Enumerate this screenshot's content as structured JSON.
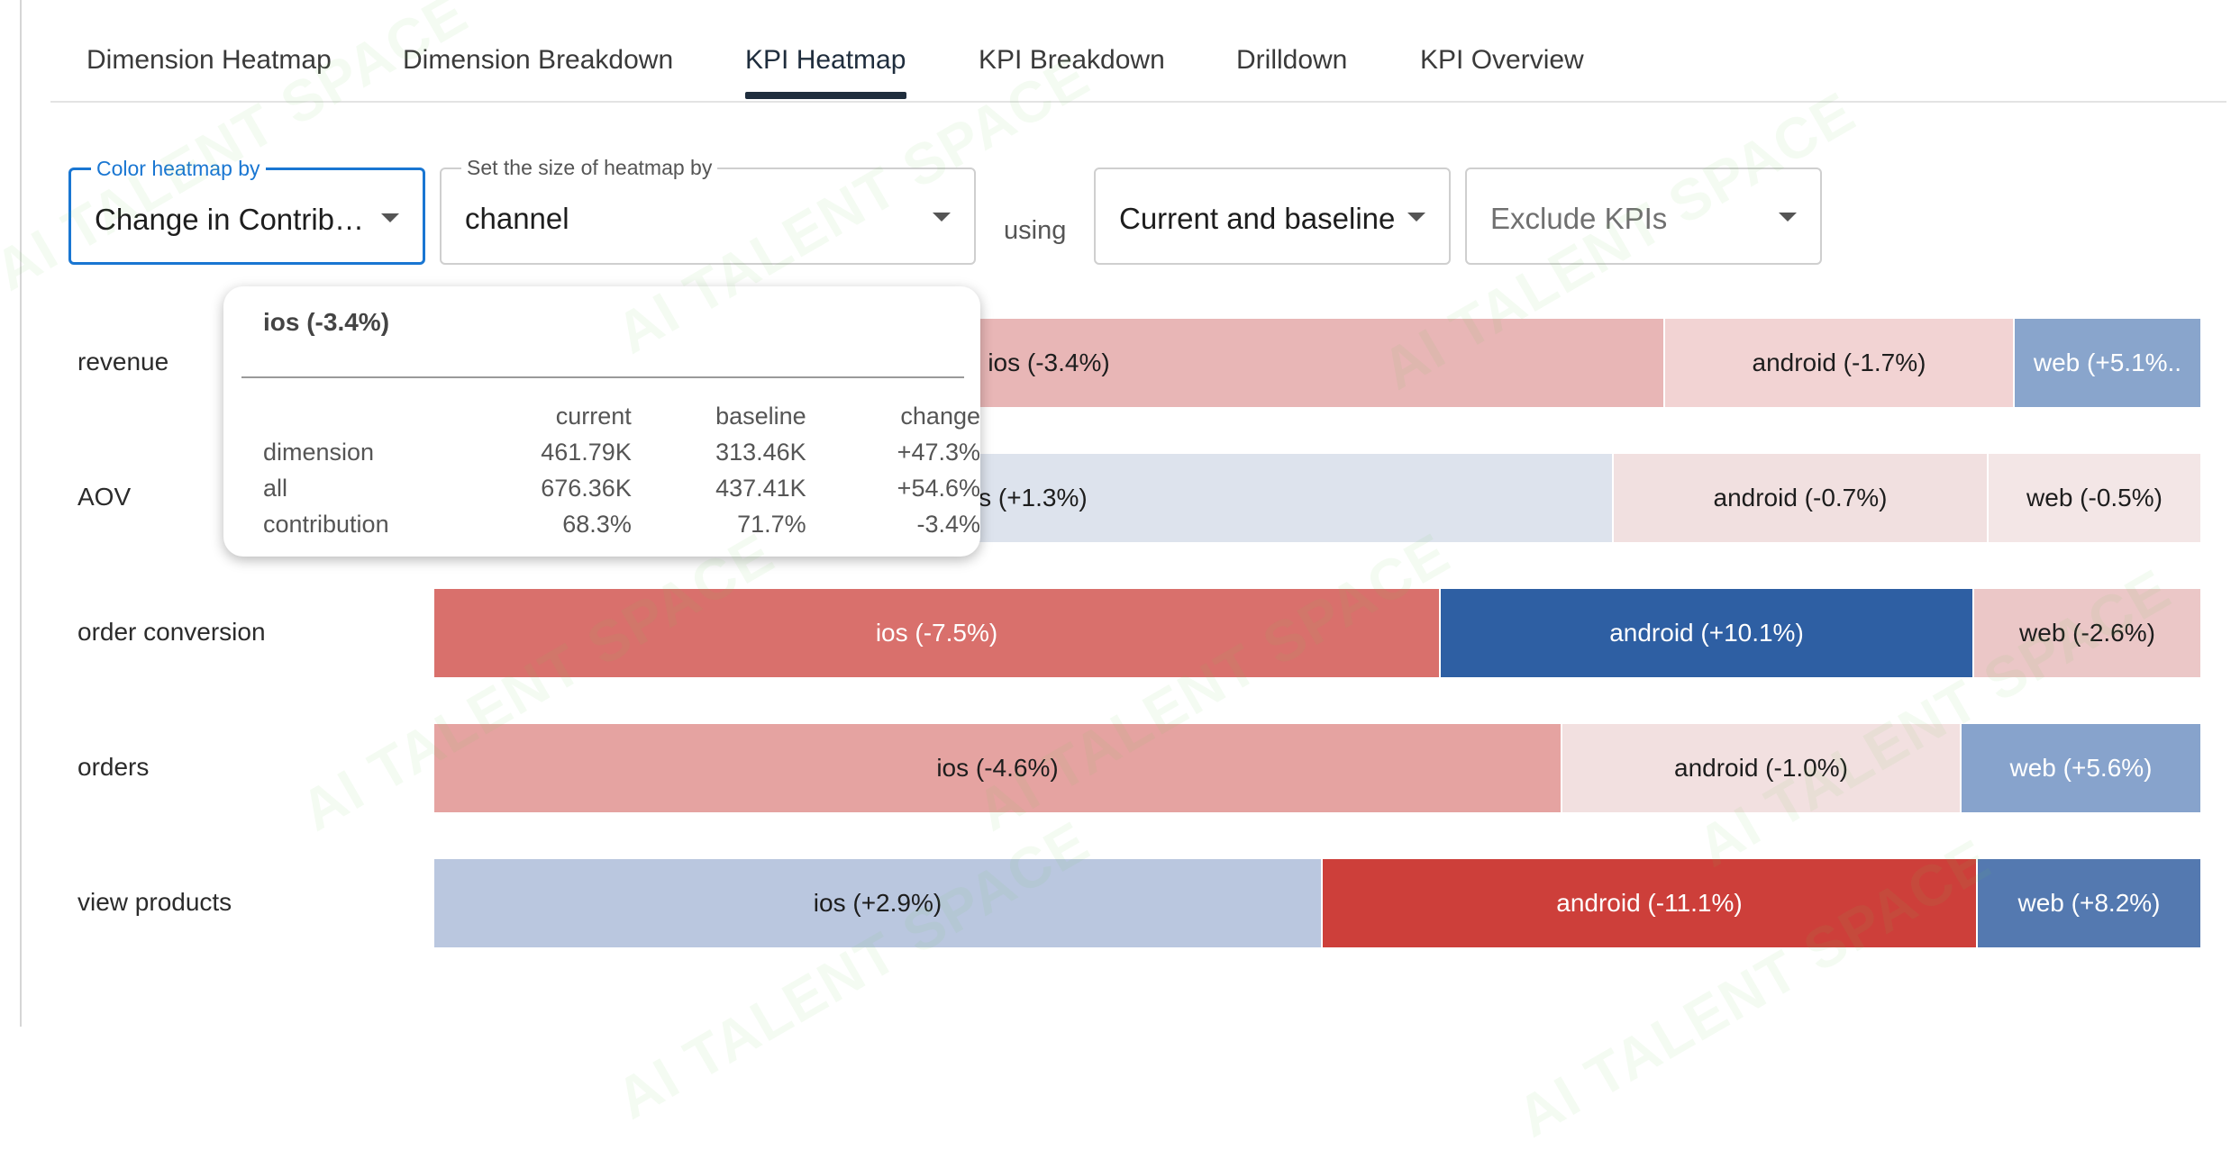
{
  "tabs": [
    {
      "label": "Dimension Heatmap",
      "active": false
    },
    {
      "label": "Dimension Breakdown",
      "active": false
    },
    {
      "label": "KPI Heatmap",
      "active": true
    },
    {
      "label": "KPI Breakdown",
      "active": false
    },
    {
      "label": "Drilldown",
      "active": false
    },
    {
      "label": "KPI Overview",
      "active": false
    }
  ],
  "controls": {
    "color_by": {
      "label": "Color heatmap by",
      "value": "Change in Contrib…"
    },
    "size_by": {
      "label": "Set the size of heatmap by",
      "value": "channel"
    },
    "using_text": "using",
    "compare": {
      "value": "Current and baseline"
    },
    "exclude": {
      "placeholder": "Exclude KPIs"
    }
  },
  "heatmap": {
    "rows": [
      {
        "kpi": "revenue",
        "cells": [
          {
            "label": "ios (-3.4%)",
            "share": 0.697,
            "color": "#e8b6b6",
            "text_color": "#1d1d1d"
          },
          {
            "label": "android (-1.7%)",
            "share": 0.198,
            "color": "#f2d3d3",
            "text_color": "#1d1d1d"
          },
          {
            "label": "web (+5.1%..",
            "share": 0.105,
            "color": "#89a5cc",
            "text_color": "#ffffff"
          }
        ]
      },
      {
        "kpi": "AOV",
        "cells": [
          {
            "label": "ios (+1.3%)",
            "share": 0.668,
            "color": "#dde3ed",
            "text_color": "#1d1d1d"
          },
          {
            "label": "android (-0.7%)",
            "share": 0.212,
            "color": "#f1e0e0",
            "text_color": "#1d1d1d"
          },
          {
            "label": "web (-0.5%)",
            "share": 0.12,
            "color": "#f3e6e6",
            "text_color": "#1d1d1d"
          }
        ]
      },
      {
        "kpi": "order conversion",
        "cells": [
          {
            "label": "ios (-7.5%)",
            "share": 0.57,
            "color": "#d9706c",
            "text_color": "#ffffff"
          },
          {
            "label": "android (+10.1%)",
            "share": 0.302,
            "color": "#2e5fa3",
            "text_color": "#ffffff"
          },
          {
            "label": "web (-2.6%)",
            "share": 0.128,
            "color": "#ebc7c7",
            "text_color": "#1d1d1d"
          }
        ]
      },
      {
        "kpi": "orders",
        "cells": [
          {
            "label": "ios (-4.6%)",
            "share": 0.639,
            "color": "#e5a3a1",
            "text_color": "#1d1d1d"
          },
          {
            "label": "android (-1.0%)",
            "share": 0.226,
            "color": "#f2e0e0",
            "text_color": "#1d1d1d"
          },
          {
            "label": "web (+5.6%)",
            "share": 0.135,
            "color": "#87a3cc",
            "text_color": "#ffffff"
          }
        ]
      },
      {
        "kpi": "view products",
        "cells": [
          {
            "label": "ios (+2.9%)",
            "share": 0.503,
            "color": "#bac7df",
            "text_color": "#1d1d1d"
          },
          {
            "label": "android (-11.1%)",
            "share": 0.371,
            "color": "#cd3f3a",
            "text_color": "#ffffff"
          },
          {
            "label": "web (+8.2%)",
            "share": 0.126,
            "color": "#5479b0",
            "text_color": "#ffffff"
          }
        ]
      }
    ]
  },
  "tooltip": {
    "title": "ios (-3.4%)",
    "columns": [
      "current",
      "baseline",
      "change"
    ],
    "rows": [
      {
        "label": "dimension",
        "current": "461.79K",
        "baseline": "313.46K",
        "change": "+47.3%"
      },
      {
        "label": "all",
        "current": "676.36K",
        "baseline": "437.41K",
        "change": "+54.6%"
      },
      {
        "label": "contribution",
        "current": "68.3%",
        "baseline": "71.7%",
        "change": "-3.4%"
      }
    ]
  },
  "watermark": "AI TALENT SPACE",
  "colors": {
    "accent": "#1976d2",
    "tab_active": "#1f2d3d"
  }
}
